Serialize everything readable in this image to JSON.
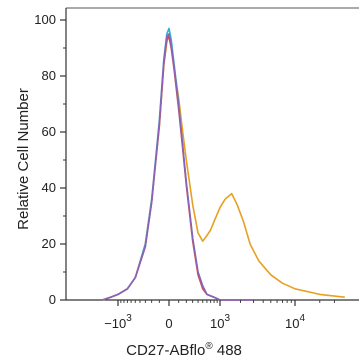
{
  "chart_data": {
    "type": "line",
    "xlabel": "CD27-ABflo",
    "xlabel_sup": "®",
    "xlabel_suffix": " 488",
    "ylabel": "Relative Cell Number",
    "ylim": [
      0,
      100
    ],
    "xscale": "biexponential",
    "grid": false,
    "legend": "none",
    "y_ticks": [
      0,
      20,
      40,
      60,
      80,
      100
    ],
    "y_tick_labels": [
      "0",
      "20",
      "40",
      "60",
      "80",
      "100"
    ],
    "x_ticks": [
      -1000,
      0,
      1000,
      10000
    ],
    "x_tick_labels": [
      {
        "base": "−10",
        "exp": "3"
      },
      {
        "base": "0",
        "exp": ""
      },
      {
        "base": "10",
        "exp": "3"
      },
      {
        "base": "10",
        "exp": "4"
      }
    ],
    "series": [
      {
        "color": "#e8a020",
        "x": [
          -1700,
          -1300,
          -1000,
          -700,
          -500,
          -300,
          -200,
          -100,
          -50,
          -20,
          0,
          20,
          50,
          100,
          150,
          200,
          300,
          400,
          500,
          600,
          700,
          800,
          1000,
          1200,
          1500,
          1800,
          2200,
          2700,
          3500,
          5000,
          7000,
          10000,
          20000,
          40000
        ],
        "y": [
          0,
          1,
          2,
          4,
          8,
          20,
          36,
          62,
          84,
          92,
          95,
          91,
          83,
          72,
          60,
          50,
          34,
          24,
          21,
          23,
          25,
          28,
          33,
          36,
          38,
          34,
          28,
          20,
          14,
          9,
          6,
          4,
          2,
          1
        ]
      },
      {
        "color": "#2ab0d8",
        "x": [
          -1700,
          -1300,
          -1000,
          -700,
          -500,
          -300,
          -200,
          -100,
          -50,
          -20,
          0,
          20,
          50,
          100,
          150,
          200,
          300,
          400,
          500,
          600,
          800,
          1000,
          1500,
          3000
        ],
        "y": [
          0,
          1,
          2,
          4,
          8,
          20,
          36,
          64,
          86,
          95,
          97,
          93,
          84,
          70,
          55,
          42,
          22,
          10,
          5,
          2,
          1,
          0,
          0,
          0
        ]
      },
      {
        "color": "#d84848",
        "x": [
          -1700,
          -1300,
          -1000,
          -700,
          -500,
          -300,
          -200,
          -100,
          -50,
          -20,
          0,
          20,
          50,
          100,
          150,
          200,
          300,
          400,
          500,
          600,
          800,
          1000,
          1500,
          3000
        ],
        "y": [
          0,
          1,
          2,
          4,
          8,
          19,
          35,
          62,
          84,
          93,
          94,
          90,
          82,
          68,
          54,
          41,
          21,
          9,
          4,
          2,
          1,
          0,
          0,
          0
        ]
      },
      {
        "color": "#8a62b8",
        "x": [
          -1700,
          -1300,
          -1000,
          -700,
          -500,
          -300,
          -200,
          -100,
          -50,
          -20,
          0,
          20,
          50,
          100,
          150,
          200,
          300,
          400,
          500,
          600,
          800,
          1000,
          1500,
          3000
        ],
        "y": [
          0,
          1,
          2,
          4,
          8,
          19,
          35,
          63,
          85,
          94,
          95,
          91,
          83,
          69,
          55,
          42,
          22,
          10,
          5,
          2,
          1,
          0,
          0,
          0
        ]
      }
    ]
  }
}
